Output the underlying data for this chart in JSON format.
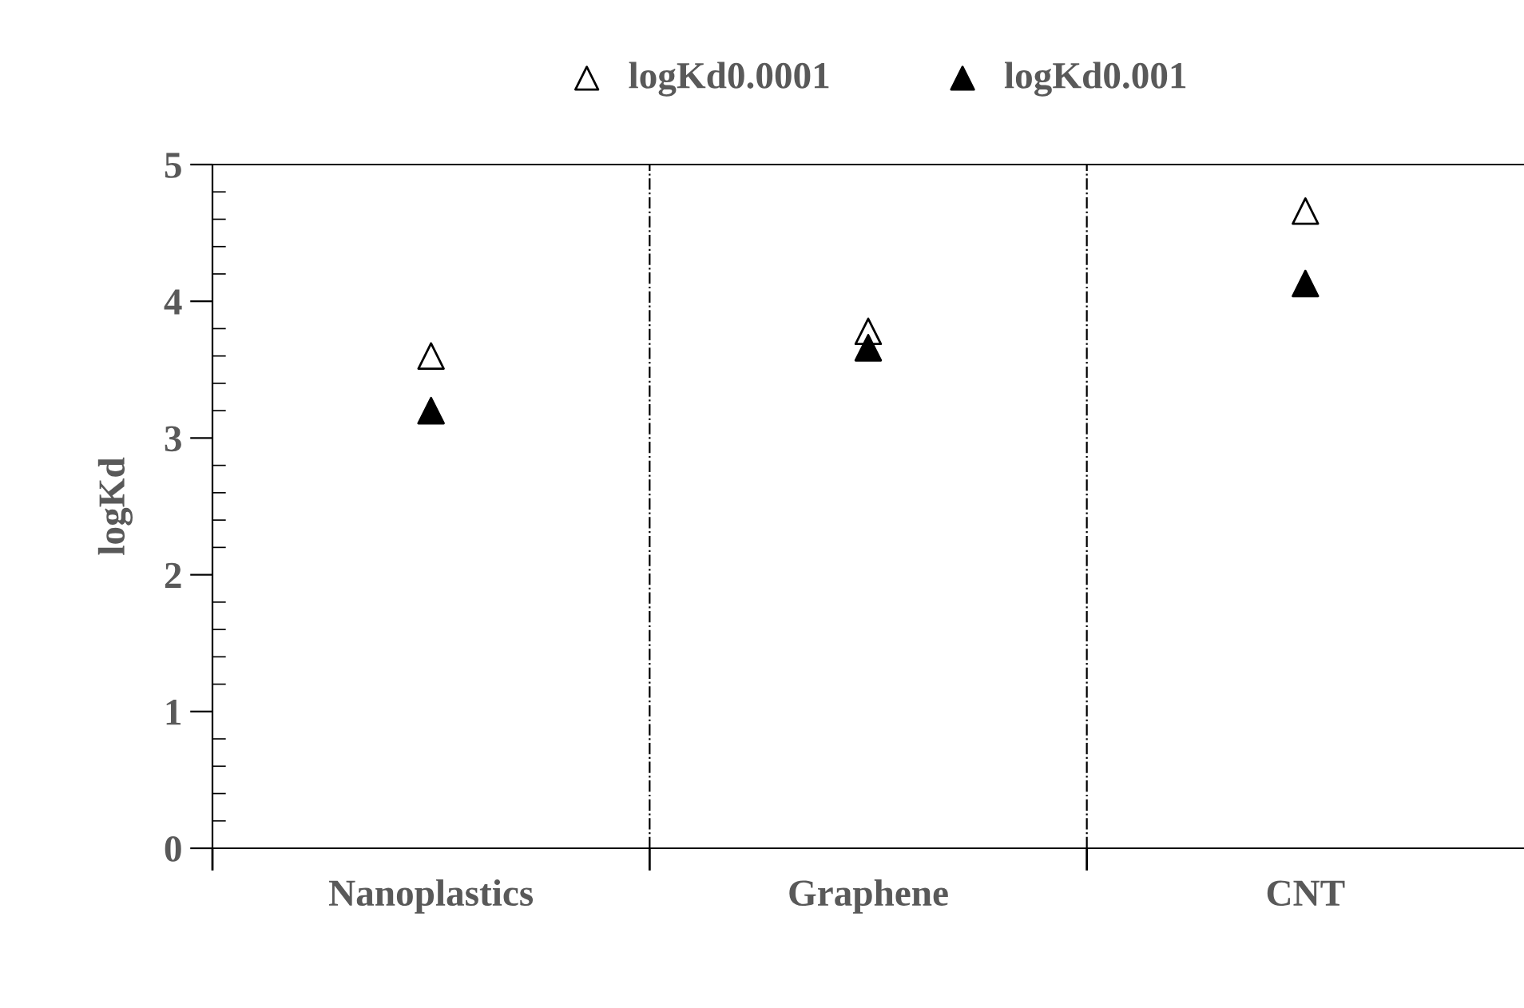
{
  "chart_data": {
    "type": "scatter",
    "ylabel": "logKd",
    "categories": [
      "Nanoplastics",
      "Graphene",
      "CNT"
    ],
    "series": [
      {
        "name": "logKd0.0001",
        "color": "#ffffff",
        "values": [
          3.6,
          3.78,
          4.66
        ]
      },
      {
        "name": "logKd0.001",
        "color": "#000000",
        "values": [
          3.2,
          3.66,
          4.13
        ]
      }
    ],
    "marker": "triangle",
    "ylim": [
      0,
      5
    ],
    "yticks": [
      0,
      1,
      2,
      3,
      4,
      5
    ],
    "grid": false,
    "legend": "top"
  }
}
